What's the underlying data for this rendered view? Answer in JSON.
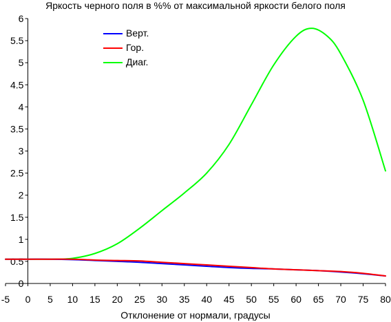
{
  "chart_data": {
    "type": "line",
    "title": "Яркость черного поля в %% от максимальной яркости белого поля",
    "xlabel": "Отклонение от нормали, градусы",
    "ylabel": "",
    "xlim": [
      -5,
      80
    ],
    "ylim": [
      0,
      6
    ],
    "xticks": [
      "-5",
      "0",
      "5",
      "10",
      "15",
      "20",
      "25",
      "30",
      "35",
      "40",
      "45",
      "50",
      "55",
      "60",
      "65",
      "70",
      "75",
      "80"
    ],
    "yticks": [
      "0",
      "0.5",
      "1",
      "1.5",
      "2",
      "2.5",
      "3",
      "3.5",
      "4",
      "4.5",
      "5",
      "5.5",
      "6"
    ],
    "grid": false,
    "legend_position": "top-left",
    "series": [
      {
        "name": "Верт.",
        "color": "#0000ff",
        "x": [
          -5,
          0,
          5,
          10,
          15,
          20,
          25,
          30,
          35,
          40,
          45,
          50,
          55,
          60,
          65,
          70,
          75,
          80
        ],
        "y": [
          0.55,
          0.55,
          0.55,
          0.54,
          0.52,
          0.5,
          0.48,
          0.45,
          0.42,
          0.39,
          0.36,
          0.34,
          0.33,
          0.31,
          0.29,
          0.26,
          0.22,
          0.17
        ]
      },
      {
        "name": "Гор.",
        "color": "#ff0000",
        "x": [
          -5,
          0,
          5,
          10,
          15,
          20,
          25,
          30,
          35,
          40,
          45,
          50,
          55,
          60,
          65,
          70,
          75,
          80
        ],
        "y": [
          0.55,
          0.55,
          0.55,
          0.55,
          0.53,
          0.52,
          0.51,
          0.48,
          0.45,
          0.42,
          0.39,
          0.36,
          0.33,
          0.31,
          0.29,
          0.27,
          0.23,
          0.17
        ]
      },
      {
        "name": "Диаг.",
        "color": "#00ff00",
        "x": [
          -5,
          0,
          5,
          10,
          15,
          20,
          25,
          30,
          35,
          40,
          45,
          50,
          55,
          60,
          63.5,
          67,
          70,
          75,
          80
        ],
        "y": [
          0.55,
          0.55,
          0.55,
          0.57,
          0.68,
          0.9,
          1.25,
          1.65,
          2.05,
          2.5,
          3.15,
          4.05,
          4.95,
          5.6,
          5.78,
          5.6,
          5.2,
          4.15,
          2.55
        ]
      }
    ]
  }
}
